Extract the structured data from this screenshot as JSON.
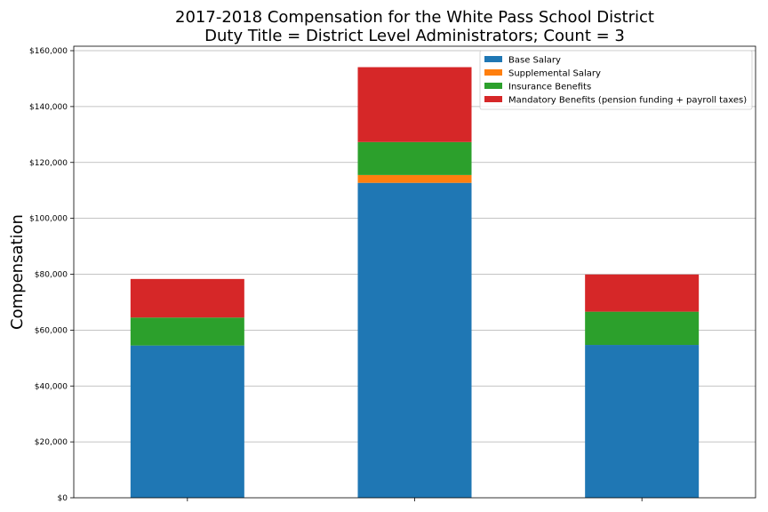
{
  "chart_data": {
    "type": "bar",
    "stacked": true,
    "title": "2017-2018 Compensation for the White Pass School District",
    "subtitle": "Duty Title = District Level Administrators; Count = 3",
    "xlabel": "",
    "ylabel": "Compensation",
    "ylim": [
      0,
      160000
    ],
    "yticks": [
      "$0",
      "$20,000",
      "$40,000",
      "$60,000",
      "$80,000",
      "$100,000",
      "$120,000",
      "$140,000",
      "$160,000"
    ],
    "categories": [
      "",
      "",
      ""
    ],
    "grid": "horizontal",
    "legend_position": "top-right",
    "series": [
      {
        "name": "Base Salary",
        "color": "#1f77b4",
        "values": [
          54500,
          112700,
          54700
        ]
      },
      {
        "name": "Supplemental Salary",
        "color": "#ff7f0e",
        "values": [
          0,
          2800,
          0
        ]
      },
      {
        "name": "Insurance Benefits",
        "color": "#2ca02c",
        "values": [
          10000,
          11800,
          11900
        ]
      },
      {
        "name": "Mandatory Benefits (pension funding + payroll taxes)",
        "color": "#d62728",
        "values": [
          13800,
          26800,
          13300
        ]
      }
    ]
  }
}
